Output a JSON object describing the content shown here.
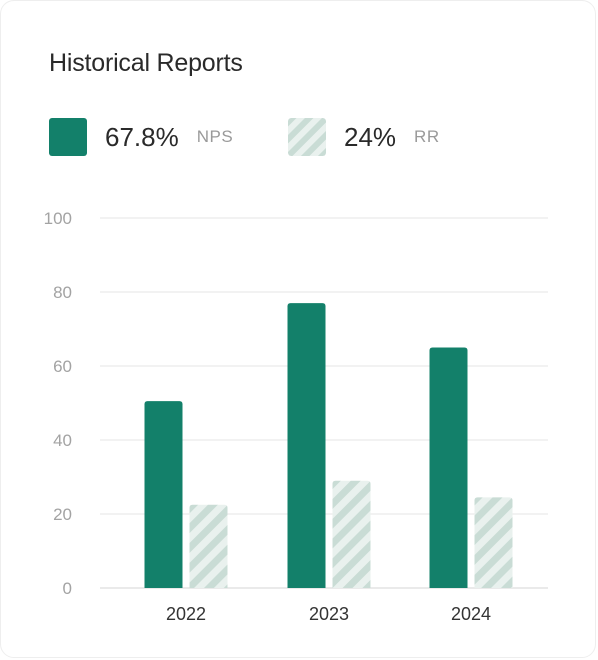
{
  "card": {
    "title": "Historical Reports"
  },
  "legend": {
    "items": [
      {
        "value": "67.8%",
        "label": "NPS",
        "pattern": "solid"
      },
      {
        "value": "24%",
        "label": "RR",
        "pattern": "striped"
      }
    ]
  },
  "colors": {
    "nps": "#13806a",
    "rr_stripe": "#c9dcd5",
    "rr_bg": "#e9f1ee",
    "grid": "#eeeeee",
    "axis_text": "#a3a3a3",
    "category_text": "#333333"
  },
  "chart_data": {
    "type": "bar",
    "categories": [
      "2022",
      "2023",
      "2024"
    ],
    "series": [
      {
        "name": "NPS",
        "values": [
          50.5,
          77,
          65
        ]
      },
      {
        "name": "RR",
        "values": [
          22.5,
          29,
          24.5
        ]
      }
    ],
    "yticks": [
      "0",
      "20",
      "40",
      "60",
      "80",
      "100"
    ],
    "ylim": [
      0,
      100
    ],
    "grid": true,
    "legend_position": "top-left",
    "xlabel": "",
    "ylabel": ""
  }
}
